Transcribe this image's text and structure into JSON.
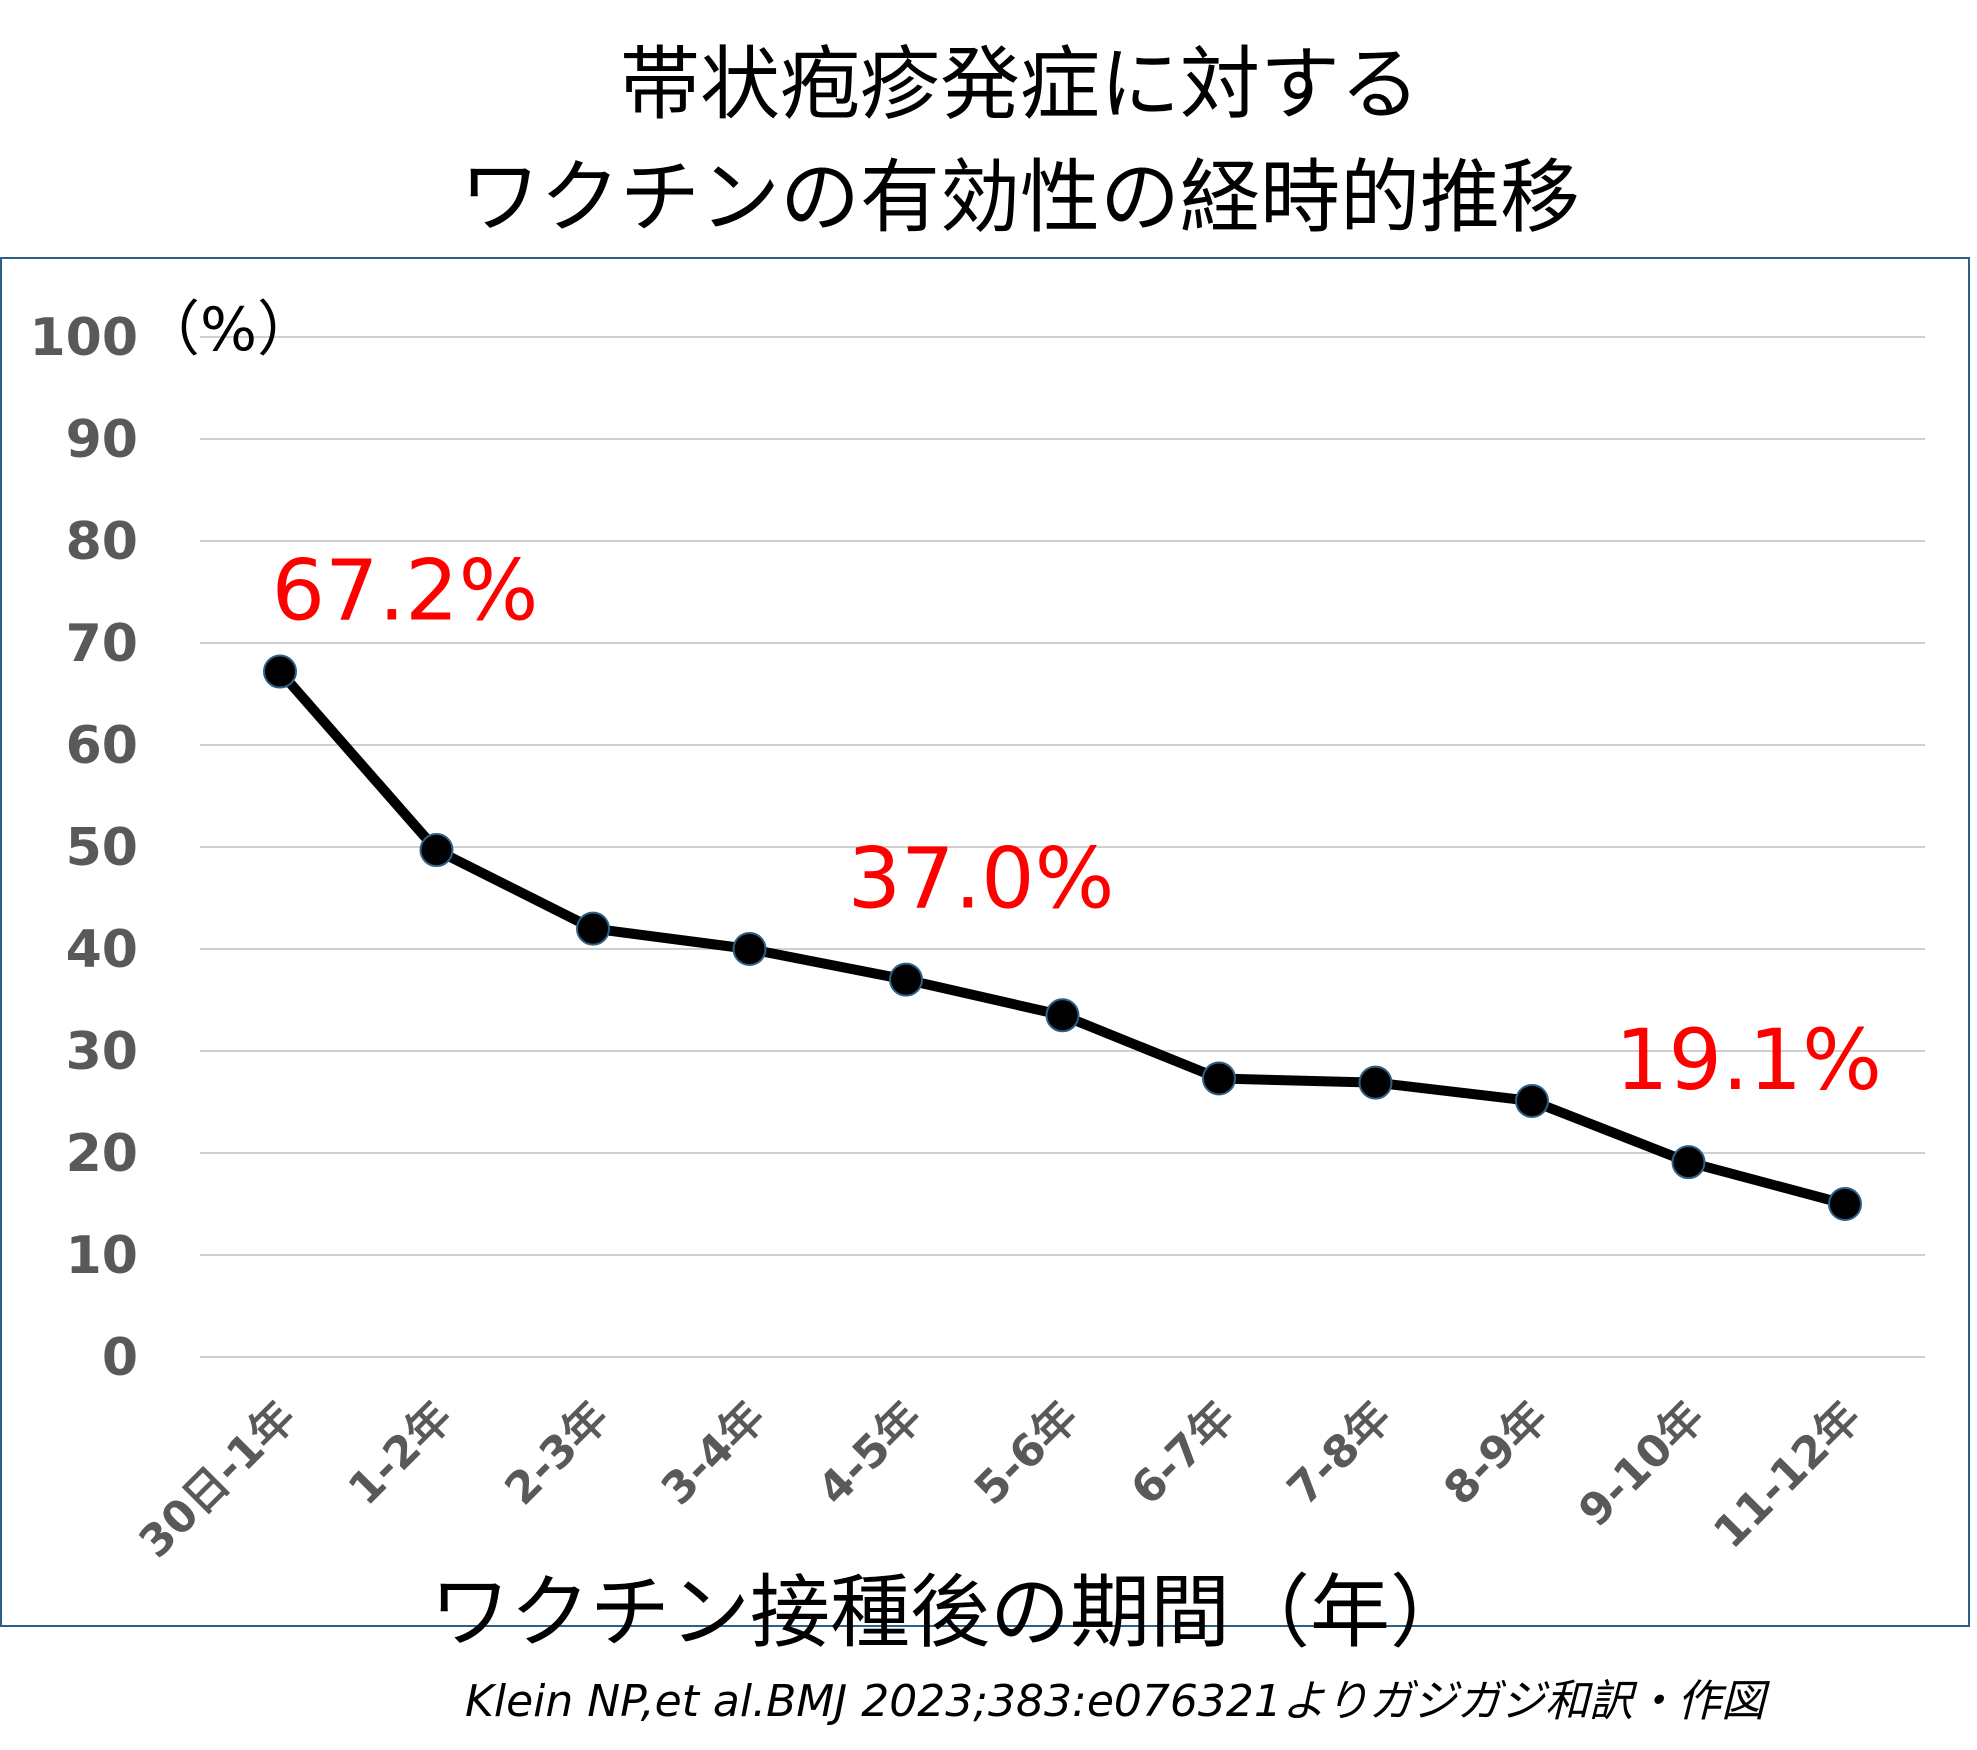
{
  "chart_data": {
    "type": "line",
    "title_lines": [
      "帯状疱疹発症に対する",
      "ワクチンの有効性の経時的推移"
    ],
    "xlabel": "ワクチン接種後の期間（年）",
    "ylabel": "（%）",
    "ylim": [
      0,
      100
    ],
    "yticks": [
      "0",
      "10",
      "20",
      "30",
      "40",
      "50",
      "60",
      "70",
      "80",
      "90",
      "100"
    ],
    "grid": true,
    "legend": "none",
    "categories": [
      "30日-1年",
      "1-2年",
      "2-3年",
      "3-4年",
      "4-5年",
      "5-6年",
      "6-7年",
      "7-8年",
      "8-9年",
      "9-10年",
      "11-12年"
    ],
    "series": [
      {
        "values": [
          67.2,
          49.7,
          42.0,
          40.0,
          37.0,
          33.5,
          27.3,
          26.9,
          25.1,
          19.1,
          15.0
        ],
        "color": "#000000"
      }
    ],
    "annotations": [
      {
        "text": "67.2%",
        "category_index": 0,
        "color": "#ff0000"
      },
      {
        "text": "37.0%",
        "category_index": 4,
        "color": "#ff0000"
      },
      {
        "text": "19.1%",
        "category_index": 9,
        "color": "#ff0000"
      }
    ]
  },
  "citation": "Klein NP,et al.BMJ 2023;383:e076321よりガジガジ和訳・作図"
}
